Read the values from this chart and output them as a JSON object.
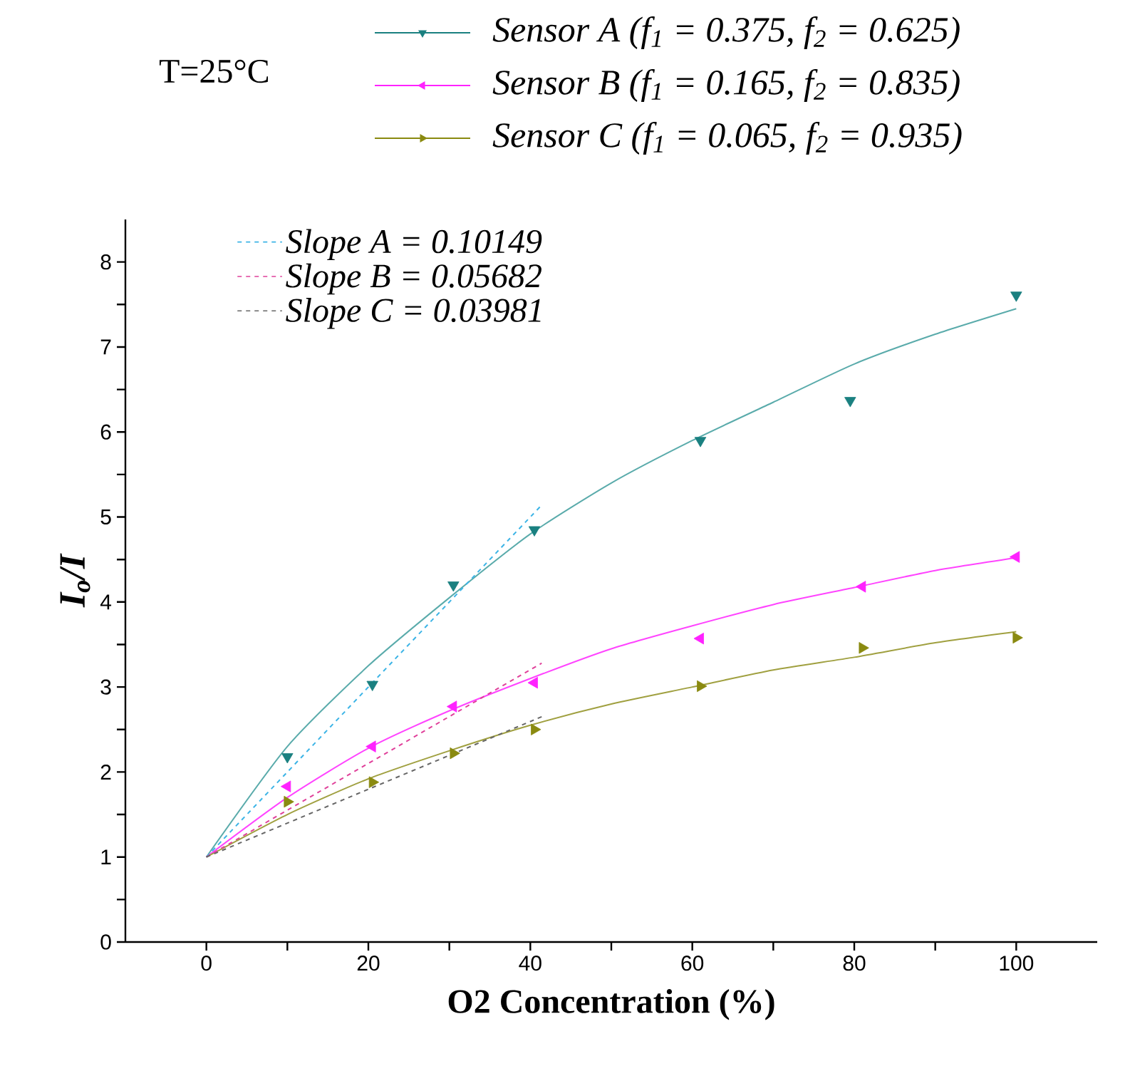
{
  "chart_data": {
    "type": "line",
    "title": "T=25°C",
    "xlabel": "O2 Concentration (%)",
    "ylabel": "I$_{o}$/I",
    "xlim": [
      -10,
      110
    ],
    "ylim": [
      0,
      8.5
    ],
    "xticks": [
      0,
      {
        "value": 10,
        "label": null
      },
      20,
      {
        "value": 30,
        "label": null
      },
      40,
      {
        "value": 50,
        "label": null
      },
      60,
      {
        "value": 70,
        "label": null
      },
      80,
      {
        "value": 90,
        "label": null
      },
      100
    ],
    "yticks": [
      0,
      {
        "value": 0.5,
        "label": null
      },
      1,
      {
        "value": 1.5,
        "label": null
      },
      2,
      {
        "value": 2.5,
        "label": null
      },
      3,
      {
        "value": 3.5,
        "label": null
      },
      4,
      {
        "value": 4.5,
        "label": null
      },
      5,
      {
        "value": 5.5,
        "label": null
      },
      6,
      {
        "value": 6.5,
        "label": null
      },
      7,
      {
        "value": 7.5,
        "label": null
      },
      8
    ],
    "legend": "top",
    "grid": false,
    "series": [
      {
        "type": "scatter",
        "name": "Sensor A  (f$_{1}$ = 0.375, f$_{2}$ = 0.625)",
        "color": "#1a8080",
        "marker": "triangle",
        "x": [
          10,
          20.5,
          30.5,
          40.5,
          61,
          79.5,
          100
        ],
        "values": [
          2.18,
          3.03,
          4.2,
          4.85,
          5.9,
          6.37,
          7.61
        ]
      },
      {
        "type": "scatter",
        "name": "Sensor B  (f$_{1}$ = 0.165, f$_{2}$ = 0.835)",
        "color": "#ff22ff",
        "marker": "triangle",
        "x": [
          10,
          20.5,
          30.5,
          40.5,
          61,
          81,
          100
        ],
        "values": [
          1.83,
          2.3,
          2.77,
          3.05,
          3.57,
          4.18,
          4.53
        ]
      },
      {
        "type": "scatter",
        "name": "Sensor C  (f$_{1}$ = 0.065, f$_{2}$ = 0.935)",
        "color": "#8a8a10",
        "marker": "triangle",
        "x": [
          10,
          20.5,
          30.5,
          40.5,
          61,
          81,
          100
        ],
        "values": [
          1.65,
          1.88,
          2.22,
          2.5,
          3.01,
          3.46,
          3.58
        ]
      },
      {
        "type": "line",
        "color": "#5aabab",
        "line_style": "solid",
        "x": [
          0,
          10,
          20,
          30,
          40,
          50,
          60,
          70,
          80,
          90,
          100
        ],
        "values": [
          1,
          2.3,
          3.25,
          4.05,
          4.8,
          5.4,
          5.9,
          6.35,
          6.8,
          7.15,
          7.45
        ]
      },
      {
        "type": "line",
        "color": "#ff44ff",
        "line_style": "solid",
        "x": [
          0,
          10,
          20,
          30,
          40,
          50,
          60,
          70,
          80,
          90,
          100
        ],
        "values": [
          1,
          1.7,
          2.28,
          2.72,
          3.1,
          3.45,
          3.72,
          3.97,
          4.17,
          4.37,
          4.52
        ]
      },
      {
        "type": "line",
        "color": "#a0a040",
        "line_style": "solid",
        "x": [
          0,
          10,
          20,
          30,
          40,
          50,
          60,
          70,
          80,
          90,
          100
        ],
        "values": [
          1,
          1.5,
          1.92,
          2.25,
          2.55,
          2.8,
          3.0,
          3.2,
          3.35,
          3.52,
          3.65
        ]
      },
      {
        "type": "line",
        "name": "Slope A = 0.10149",
        "color": "#3cb4e6",
        "line_style": "dashed",
        "x": [
          0,
          41.4
        ],
        "values": [
          1,
          5.14
        ]
      },
      {
        "type": "line",
        "name": "Slope B = 0.05682",
        "color": "#e0409a",
        "line_style": "dashed",
        "x": [
          0,
          41.4
        ],
        "values": [
          1,
          3.28
        ]
      },
      {
        "type": "line",
        "name": "Slope C = 0.03981",
        "color": "#666666",
        "line_style": "dashed",
        "x": [
          0,
          41.4
        ],
        "values": [
          1,
          2.65
        ]
      }
    ]
  }
}
